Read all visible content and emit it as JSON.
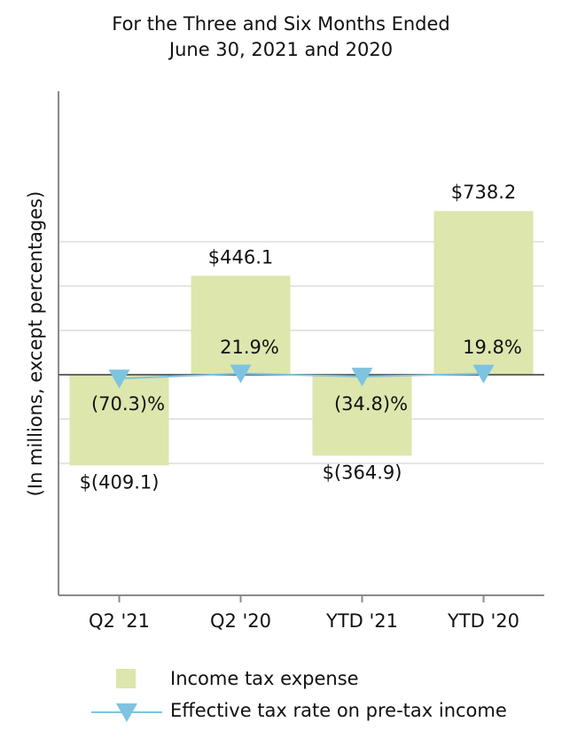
{
  "chart_data": {
    "type": "bar",
    "title_line1": "For the Three and Six Months Ended",
    "title_line2": "June 30, 2021 and 2020",
    "ylabel": "(In millions, except percentages)",
    "xlabel": "",
    "categories": [
      "Q2 '21",
      "Q2 '20",
      "YTD '21",
      "YTD '20"
    ],
    "series": [
      {
        "name": "Income tax expense",
        "type": "bar",
        "color": "#dce6ad",
        "values": [
          -409.1,
          446.1,
          -364.9,
          738.2
        ],
        "labels": [
          "$(409.1)",
          "$446.1",
          "$(364.9)",
          "$738.2"
        ]
      },
      {
        "name": "Effective tax rate on pre-tax income",
        "type": "line",
        "color": "#7ec3df",
        "values": [
          -70.3,
          21.9,
          -34.8,
          19.8
        ],
        "labels": [
          "(70.3)%",
          "21.9%",
          "(34.8)%",
          "19.8%"
        ]
      }
    ],
    "ylim": [
      -600,
      800
    ],
    "grid": true,
    "legend": "bottom"
  }
}
